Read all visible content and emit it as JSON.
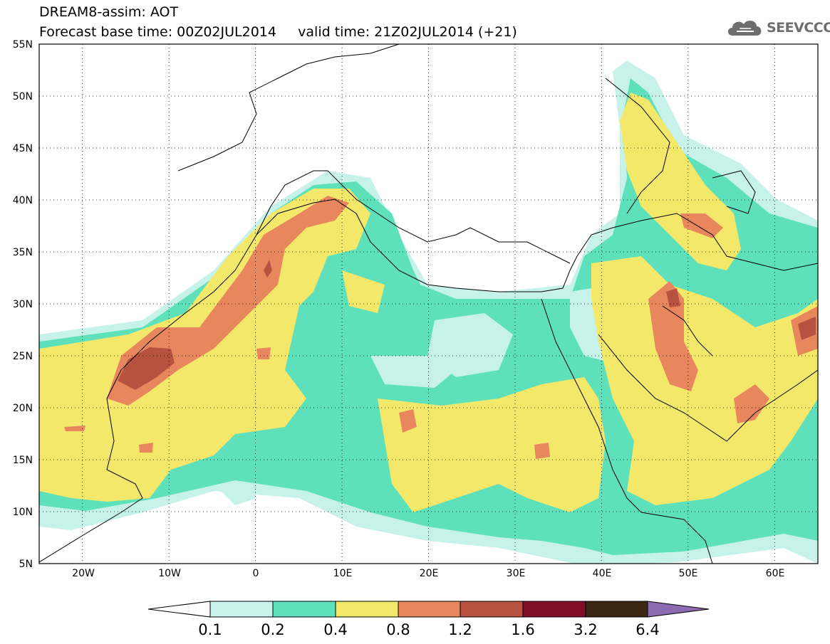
{
  "title": {
    "line1": "DREAM8-assim: AOT",
    "line2": "Forecast base time: 00Z02JUL2014     valid time: 21Z02JUL2014 (+21)"
  },
  "logo": {
    "text": "SEEVCCC",
    "icon": "cloud-icon"
  },
  "map": {
    "lat_labels": [
      "55N",
      "50N",
      "45N",
      "40N",
      "35N",
      "30N",
      "25N",
      "20N",
      "15N",
      "10N",
      "5N"
    ],
    "lon_labels": [
      "20W",
      "10W",
      "0",
      "10E",
      "20E",
      "30E",
      "40E",
      "50E",
      "60E"
    ],
    "lon_range": [
      -25,
      65
    ],
    "lat_range": [
      5,
      55
    ]
  },
  "colorbar": {
    "labels": [
      "0.1",
      "0.2",
      "0.4",
      "0.8",
      "1.2",
      "1.6",
      "3.2",
      "6.4"
    ],
    "colors": [
      "#ffffff",
      "#c7f2ea",
      "#5ee0bb",
      "#f4e86a",
      "#e8875e",
      "#b75241",
      "#830e2a",
      "#3d2815",
      "#8d6bb0"
    ]
  }
}
